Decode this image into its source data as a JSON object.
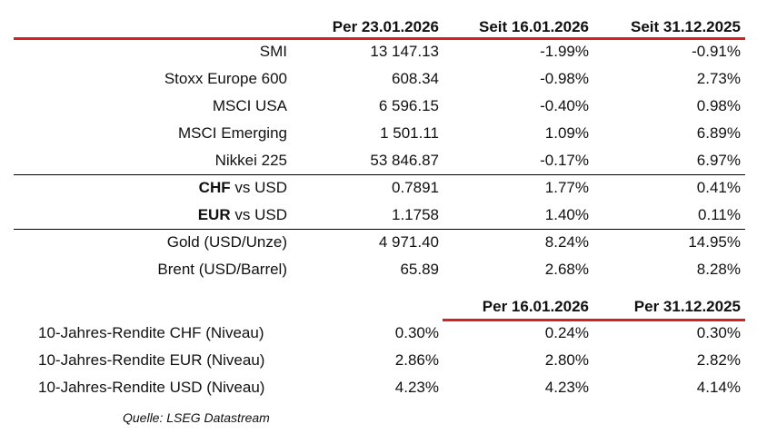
{
  "header": [
    "Per 23.01.2026",
    "Seit 16.01.2026",
    "Seit 31.12.2025"
  ],
  "sections": [
    {
      "rows": [
        {
          "label": "SMI",
          "cells": [
            "13 147.13",
            "-1.99%",
            "-0.91%"
          ]
        },
        {
          "label": "Stoxx Europe 600",
          "cells": [
            "608.34",
            "-0.98%",
            "2.73%"
          ]
        },
        {
          "label": "MSCI USA",
          "cells": [
            "6 596.15",
            "-0.40%",
            "0.98%"
          ]
        },
        {
          "label": "MSCI Emerging",
          "cells": [
            "1 501.11",
            "1.09%",
            "6.89%"
          ]
        },
        {
          "label": "Nikkei 225",
          "cells": [
            "53 846.87",
            "-0.17%",
            "6.97%"
          ]
        }
      ]
    },
    {
      "rows": [
        {
          "label_bold": "CHF",
          "label": "vs USD",
          "cells": [
            "0.7891",
            "1.77%",
            "0.41%"
          ]
        },
        {
          "label_bold": "EUR",
          "label": "vs USD",
          "cells": [
            "1.1758",
            "1.40%",
            "0.11%"
          ]
        }
      ]
    },
    {
      "rows": [
        {
          "label": "Gold (USD/Unze)",
          "cells": [
            "4 971.40",
            "8.24%",
            "14.95%"
          ]
        },
        {
          "label": "Brent (USD/Barrel)",
          "cells": [
            "65.89",
            "2.68%",
            "8.28%"
          ]
        }
      ]
    }
  ],
  "yield_header": [
    "Per 16.01.2026",
    "Per 31.12.2025"
  ],
  "yield_rows": [
    {
      "label": "10-Jahres-Rendite CHF (Niveau)",
      "cells": [
        "0.30%",
        "0.24%",
        "0.30%"
      ]
    },
    {
      "label": "10-Jahres-Rendite EUR (Niveau)",
      "cells": [
        "2.86%",
        "2.80%",
        "2.82%"
      ]
    },
    {
      "label": "10-Jahres-Rendite USD (Niveau)",
      "cells": [
        "4.23%",
        "4.23%",
        "4.14%"
      ]
    }
  ],
  "source": "Quelle: LSEG Datastream"
}
